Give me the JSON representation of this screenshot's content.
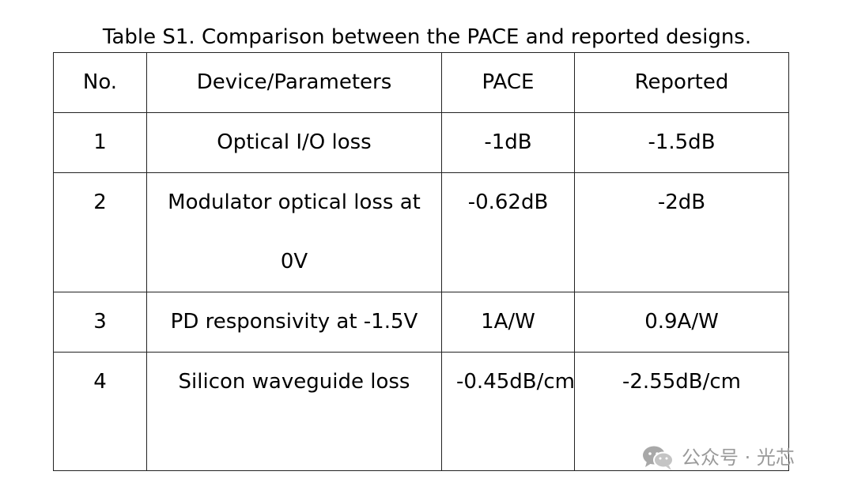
{
  "caption": "Table S1. Comparison between the PACE and reported designs.",
  "table": {
    "headers": [
      "No.",
      "Device/Parameters",
      "PACE",
      "Reported"
    ],
    "rows": [
      [
        "1",
        "Optical I/O loss",
        "-1dB",
        "-1.5dB"
      ],
      [
        "2",
        "Modulator optical loss at 0V",
        "-0.62dB",
        "-2dB"
      ],
      [
        "3",
        "PD responsivity at -1.5V",
        "1A/W",
        "0.9A/W"
      ],
      [
        "4",
        "Silicon waveguide loss",
        "-0.45dB/cm",
        "-2.55dB/cm"
      ]
    ]
  },
  "watermark": {
    "icon": "wechat-icon",
    "text": "公众号 · 光芯"
  }
}
